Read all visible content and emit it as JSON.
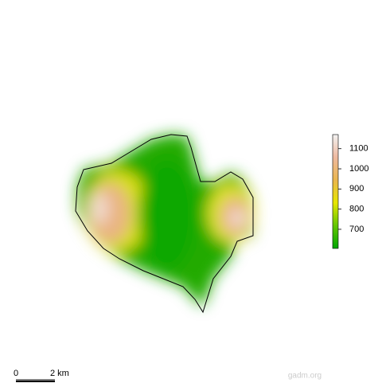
{
  "legend": {
    "range": [
      605,
      1170
    ],
    "ticks": [
      700,
      800,
      900,
      1000,
      1100
    ],
    "colors": [
      "#00A600",
      "#63C600",
      "#E6E600",
      "#EAB64E",
      "#EEB99F",
      "#F2F2F2"
    ]
  },
  "scale_bar": {
    "labels": [
      "0",
      "2 km"
    ]
  },
  "credit": "gadm.org"
}
